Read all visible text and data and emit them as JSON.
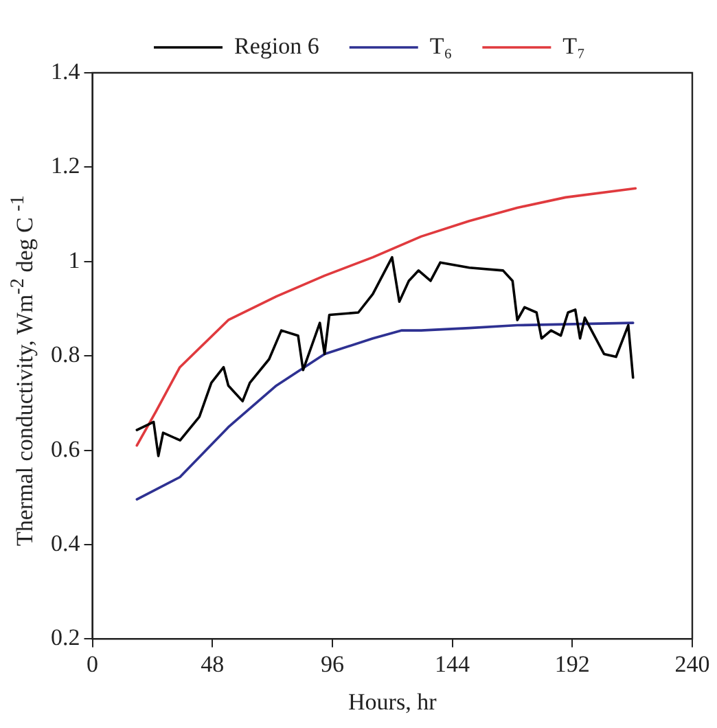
{
  "chart_data": {
    "type": "line",
    "xlabel": "Hours, hr",
    "ylabel": "Thermal conductivity, Wm$^{-2}$ deg C $^{-1}$",
    "xlim": [
      0,
      240
    ],
    "xticks": [
      0,
      48,
      96,
      144,
      192,
      240
    ],
    "ylim": [
      0.2,
      1.4
    ],
    "yticks": [
      0.2,
      0.4,
      0.6,
      0.8,
      1,
      1.2,
      1.4
    ],
    "grid": false,
    "legend": "top",
    "marker": "none",
    "line_style": "solid",
    "series": [
      {
        "name": "Region 6",
        "color": "#000000",
        "x": [
          17.8,
          24.5,
          26.4,
          28.3,
          35.1,
          42.8,
          47.6,
          52.5,
          54.4,
          60.1,
          63.0,
          70.7,
          75.6,
          82.3,
          84.3,
          91.0,
          92.9,
          94.8,
          106.4,
          112.2,
          119.9,
          122.8,
          126.6,
          130.5,
          135.3,
          139.2,
          150.8,
          164.3,
          168.1,
          170.0,
          172.9,
          177.7,
          179.7,
          183.5,
          187.4,
          190.3,
          193.2,
          195.1,
          197.0,
          204.7,
          209.5,
          214.4,
          216.3
        ],
        "values": [
          0.643,
          0.66,
          0.588,
          0.637,
          0.621,
          0.671,
          0.743,
          0.776,
          0.737,
          0.704,
          0.743,
          0.793,
          0.854,
          0.843,
          0.77,
          0.87,
          0.804,
          0.887,
          0.892,
          0.931,
          1.009,
          0.915,
          0.959,
          0.981,
          0.959,
          0.998,
          0.987,
          0.981,
          0.959,
          0.876,
          0.903,
          0.892,
          0.837,
          0.854,
          0.843,
          0.892,
          0.898,
          0.837,
          0.881,
          0.804,
          0.798,
          0.865,
          0.754
        ]
      },
      {
        "name": "T₆",
        "color": "#2e3192",
        "x": [
          17.8,
          35,
          54.4,
          73.6,
          92.9,
          112.2,
          123.8,
          131.5,
          150.8,
          170,
          216.3
        ],
        "values": [
          0.496,
          0.543,
          0.649,
          0.737,
          0.804,
          0.837,
          0.854,
          0.854,
          0.859,
          0.865,
          0.87
        ]
      },
      {
        "name": "T₇",
        "color": "#e03a3e",
        "x": [
          17.8,
          25.4,
          35,
          54.4,
          73.6,
          92.9,
          112.2,
          131.5,
          150.8,
          170,
          189.3,
          217.3
        ],
        "values": [
          0.61,
          0.682,
          0.776,
          0.876,
          0.926,
          0.97,
          1.009,
          1.053,
          1.086,
          1.114,
          1.136,
          1.155
        ]
      }
    ]
  }
}
